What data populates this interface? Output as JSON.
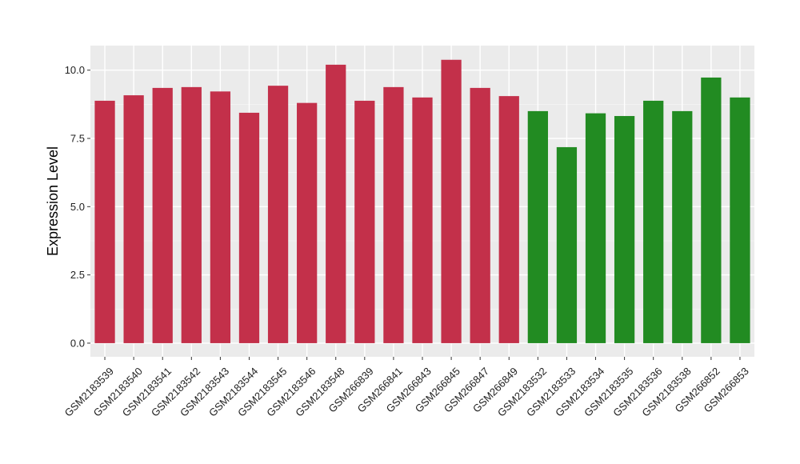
{
  "chart_data": {
    "type": "bar",
    "title": "",
    "xlabel": "",
    "ylabel": "Expression Level",
    "ylim": [
      -0.5,
      10.9
    ],
    "yticks": [
      0.0,
      2.5,
      5.0,
      7.5,
      10.0
    ],
    "ytick_labels": [
      "0.0",
      "2.5",
      "5.0",
      "7.5",
      "10.0"
    ],
    "grid": true,
    "legend": "none",
    "categories": [
      "GSM2183539",
      "GSM2183540",
      "GSM2183541",
      "GSM2183542",
      "GSM2183543",
      "GSM2183544",
      "GSM2183545",
      "GSM2183546",
      "GSM2183548",
      "GSM266839",
      "GSM266841",
      "GSM266843",
      "GSM266845",
      "GSM266847",
      "GSM266849",
      "GSM2183532",
      "GSM2183533",
      "GSM2183534",
      "GSM2183535",
      "GSM2183536",
      "GSM2183538",
      "GSM266852",
      "GSM266853"
    ],
    "values": [
      8.88,
      9.08,
      9.35,
      9.38,
      9.22,
      8.44,
      9.43,
      8.8,
      10.2,
      8.88,
      9.38,
      9.0,
      10.38,
      9.35,
      9.05,
      8.5,
      7.18,
      8.42,
      8.32,
      8.88,
      8.5,
      9.73,
      9.0
    ],
    "bar_colors": [
      "#C3304A",
      "#C3304A",
      "#C3304A",
      "#C3304A",
      "#C3304A",
      "#C3304A",
      "#C3304A",
      "#C3304A",
      "#C3304A",
      "#C3304A",
      "#C3304A",
      "#C3304A",
      "#C3304A",
      "#C3304A",
      "#C3304A",
      "#228B22",
      "#228B22",
      "#228B22",
      "#228B22",
      "#228B22",
      "#228B22",
      "#228B22",
      "#228B22"
    ],
    "colors": {
      "panel_background": "#EBEBEB",
      "grid_major": "#FFFFFF",
      "grid_minor": "#F5F5F5",
      "group1": "#C3304A",
      "group2": "#228B22"
    }
  }
}
